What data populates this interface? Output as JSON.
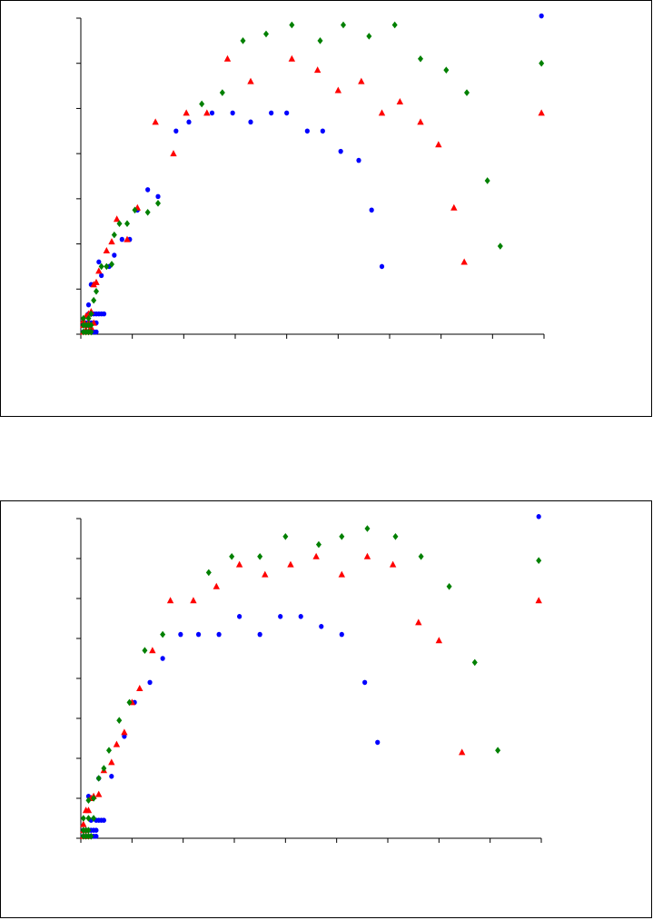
{
  "page_title": "",
  "colors": {
    "blue": "#0000ff",
    "red": "#ff0000",
    "green": "#008000"
  },
  "chart_data": [
    {
      "type": "scatter",
      "title": "",
      "xlabel": "",
      "ylabel": "",
      "xlim": [
        0,
        9
      ],
      "ylim": [
        0,
        7
      ],
      "x_ticks": 9,
      "y_ticks": 7,
      "grid": false,
      "legend": "none",
      "series": [
        {
          "marker": "circle",
          "color": "#0000ff",
          "points": [
            [
              0.05,
              0.05
            ],
            [
              0.1,
              0.05
            ],
            [
              0.15,
              0.05
            ],
            [
              0.2,
              0.05
            ],
            [
              0.25,
              0.05
            ],
            [
              0.3,
              0.05
            ],
            [
              0.05,
              0.25
            ],
            [
              0.1,
              0.25
            ],
            [
              0.15,
              0.25
            ],
            [
              0.2,
              0.25
            ],
            [
              0.25,
              0.25
            ],
            [
              0.3,
              0.25
            ],
            [
              0.15,
              0.45
            ],
            [
              0.25,
              0.45
            ],
            [
              0.3,
              0.45
            ],
            [
              0.35,
              0.45
            ],
            [
              0.4,
              0.45
            ],
            [
              0.45,
              0.45
            ],
            [
              0.15,
              0.65
            ],
            [
              0.2,
              1.1
            ],
            [
              0.25,
              1.1
            ],
            [
              0.35,
              1.6
            ],
            [
              0.4,
              1.3
            ],
            [
              0.55,
              1.5
            ],
            [
              0.65,
              1.75
            ],
            [
              0.8,
              2.1
            ],
            [
              0.95,
              2.1
            ],
            [
              1.1,
              2.75
            ],
            [
              1.3,
              3.2
            ],
            [
              1.5,
              3.05
            ],
            [
              1.85,
              4.5
            ],
            [
              2.1,
              4.7
            ],
            [
              2.55,
              4.9
            ],
            [
              2.95,
              4.9
            ],
            [
              3.3,
              4.7
            ],
            [
              3.7,
              4.9
            ],
            [
              4.0,
              4.9
            ],
            [
              4.4,
              4.5
            ],
            [
              4.7,
              4.5
            ],
            [
              5.05,
              4.05
            ],
            [
              5.4,
              3.85
            ],
            [
              5.65,
              2.75
            ],
            [
              5.85,
              1.5
            ],
            [
              8.95,
              7.05
            ]
          ]
        },
        {
          "marker": "triangle",
          "color": "#ff0000",
          "points": [
            [
              0.05,
              0.05
            ],
            [
              0.1,
              0.1
            ],
            [
              0.15,
              0.05
            ],
            [
              0.05,
              0.2
            ],
            [
              0.1,
              0.2
            ],
            [
              0.2,
              0.15
            ],
            [
              0.05,
              0.3
            ],
            [
              0.15,
              0.25
            ],
            [
              0.25,
              0.25
            ],
            [
              0.1,
              0.4
            ],
            [
              0.15,
              0.45
            ],
            [
              0.2,
              0.5
            ],
            [
              0.25,
              1.1
            ],
            [
              0.3,
              1.15
            ],
            [
              0.35,
              1.4
            ],
            [
              0.5,
              1.85
            ],
            [
              0.6,
              2.05
            ],
            [
              0.7,
              2.55
            ],
            [
              0.9,
              2.1
            ],
            [
              1.1,
              2.8
            ],
            [
              1.45,
              4.7
            ],
            [
              1.8,
              4.0
            ],
            [
              2.05,
              4.9
            ],
            [
              2.45,
              4.9
            ],
            [
              2.85,
              6.1
            ],
            [
              3.3,
              5.6
            ],
            [
              4.1,
              6.1
            ],
            [
              4.6,
              5.85
            ],
            [
              5.0,
              5.4
            ],
            [
              5.45,
              5.6
            ],
            [
              5.85,
              4.9
            ],
            [
              6.2,
              5.15
            ],
            [
              6.6,
              4.7
            ],
            [
              6.95,
              4.2
            ],
            [
              7.25,
              2.8
            ],
            [
              7.45,
              1.6
            ],
            [
              8.95,
              4.9
            ]
          ]
        },
        {
          "marker": "diamond",
          "color": "#008000",
          "points": [
            [
              0.05,
              0.05
            ],
            [
              0.1,
              0.05
            ],
            [
              0.15,
              0.05
            ],
            [
              0.2,
              0.05
            ],
            [
              0.05,
              0.2
            ],
            [
              0.1,
              0.2
            ],
            [
              0.15,
              0.2
            ],
            [
              0.2,
              0.2
            ],
            [
              0.05,
              0.35
            ],
            [
              0.15,
              0.35
            ],
            [
              0.2,
              0.45
            ],
            [
              0.25,
              0.75
            ],
            [
              0.3,
              0.95
            ],
            [
              0.4,
              1.5
            ],
            [
              0.5,
              1.5
            ],
            [
              0.6,
              1.55
            ],
            [
              0.65,
              2.2
            ],
            [
              0.75,
              2.45
            ],
            [
              0.9,
              2.45
            ],
            [
              1.05,
              2.75
            ],
            [
              1.3,
              2.7
            ],
            [
              1.5,
              2.9
            ],
            [
              2.35,
              5.1
            ],
            [
              2.75,
              5.35
            ],
            [
              3.15,
              6.5
            ],
            [
              3.6,
              6.65
            ],
            [
              4.1,
              6.85
            ],
            [
              4.65,
              6.5
            ],
            [
              5.1,
              6.85
            ],
            [
              5.6,
              6.6
            ],
            [
              6.1,
              6.85
            ],
            [
              6.6,
              6.1
            ],
            [
              7.1,
              5.85
            ],
            [
              7.5,
              5.35
            ],
            [
              7.9,
              3.4
            ],
            [
              8.15,
              1.95
            ],
            [
              8.95,
              6.0
            ]
          ]
        }
      ]
    },
    {
      "type": "scatter",
      "title": "",
      "xlabel": "",
      "ylabel": "",
      "xlim": [
        0,
        9
      ],
      "ylim": [
        0,
        8
      ],
      "x_ticks": 9,
      "y_ticks": 8,
      "grid": false,
      "legend": "none",
      "series": [
        {
          "marker": "circle",
          "color": "#0000ff",
          "points": [
            [
              0.05,
              0.05
            ],
            [
              0.1,
              0.05
            ],
            [
              0.15,
              0.05
            ],
            [
              0.2,
              0.05
            ],
            [
              0.25,
              0.05
            ],
            [
              0.3,
              0.05
            ],
            [
              0.05,
              0.2
            ],
            [
              0.1,
              0.2
            ],
            [
              0.15,
              0.2
            ],
            [
              0.2,
              0.2
            ],
            [
              0.25,
              0.2
            ],
            [
              0.3,
              0.2
            ],
            [
              0.2,
              0.45
            ],
            [
              0.3,
              0.45
            ],
            [
              0.35,
              0.45
            ],
            [
              0.4,
              0.45
            ],
            [
              0.45,
              0.45
            ],
            [
              0.15,
              1.05
            ],
            [
              0.35,
              1.5
            ],
            [
              0.6,
              1.55
            ],
            [
              0.85,
              2.55
            ],
            [
              1.05,
              3.4
            ],
            [
              1.35,
              3.9
            ],
            [
              1.6,
              4.5
            ],
            [
              1.95,
              5.1
            ],
            [
              2.3,
              5.1
            ],
            [
              2.7,
              5.1
            ],
            [
              3.1,
              5.55
            ],
            [
              3.5,
              5.1
            ],
            [
              3.9,
              5.55
            ],
            [
              4.3,
              5.55
            ],
            [
              4.7,
              5.3
            ],
            [
              5.1,
              5.1
            ],
            [
              5.55,
              3.9
            ],
            [
              5.8,
              2.4
            ],
            [
              8.95,
              8.05
            ]
          ]
        },
        {
          "marker": "triangle",
          "color": "#ff0000",
          "points": [
            [
              0.05,
              0.05
            ],
            [
              0.1,
              0.05
            ],
            [
              0.15,
              0.05
            ],
            [
              0.05,
              0.2
            ],
            [
              0.1,
              0.2
            ],
            [
              0.05,
              0.35
            ],
            [
              0.1,
              0.7
            ],
            [
              0.15,
              0.7
            ],
            [
              0.2,
              1.0
            ],
            [
              0.25,
              1.05
            ],
            [
              0.35,
              1.1
            ],
            [
              0.45,
              1.7
            ],
            [
              0.6,
              1.9
            ],
            [
              0.7,
              2.35
            ],
            [
              0.85,
              2.65
            ],
            [
              1.0,
              3.4
            ],
            [
              1.15,
              3.75
            ],
            [
              1.4,
              4.7
            ],
            [
              1.75,
              5.95
            ],
            [
              2.2,
              5.95
            ],
            [
              2.65,
              6.3
            ],
            [
              3.1,
              6.85
            ],
            [
              3.6,
              6.6
            ],
            [
              4.1,
              6.85
            ],
            [
              4.6,
              7.05
            ],
            [
              5.1,
              6.6
            ],
            [
              5.6,
              7.05
            ],
            [
              6.1,
              6.85
            ],
            [
              6.6,
              5.4
            ],
            [
              7.0,
              4.95
            ],
            [
              7.45,
              2.15
            ],
            [
              8.95,
              5.95
            ]
          ]
        },
        {
          "marker": "diamond",
          "color": "#008000",
          "points": [
            [
              0.05,
              0.05
            ],
            [
              0.1,
              0.05
            ],
            [
              0.15,
              0.05
            ],
            [
              0.2,
              0.05
            ],
            [
              0.05,
              0.2
            ],
            [
              0.1,
              0.2
            ],
            [
              0.15,
              0.2
            ],
            [
              0.05,
              0.5
            ],
            [
              0.15,
              0.5
            ],
            [
              0.25,
              0.5
            ],
            [
              0.15,
              0.95
            ],
            [
              0.25,
              1.0
            ],
            [
              0.35,
              1.5
            ],
            [
              0.45,
              1.75
            ],
            [
              0.55,
              2.2
            ],
            [
              0.75,
              2.95
            ],
            [
              0.95,
              3.4
            ],
            [
              1.25,
              4.7
            ],
            [
              1.6,
              5.1
            ],
            [
              2.5,
              6.65
            ],
            [
              2.95,
              7.05
            ],
            [
              3.5,
              7.05
            ],
            [
              4.0,
              7.55
            ],
            [
              4.65,
              7.35
            ],
            [
              5.1,
              7.55
            ],
            [
              5.6,
              7.75
            ],
            [
              6.15,
              7.55
            ],
            [
              6.65,
              7.05
            ],
            [
              7.2,
              6.3
            ],
            [
              7.7,
              4.4
            ],
            [
              8.15,
              2.2
            ],
            [
              8.95,
              6.95
            ]
          ]
        }
      ]
    }
  ]
}
